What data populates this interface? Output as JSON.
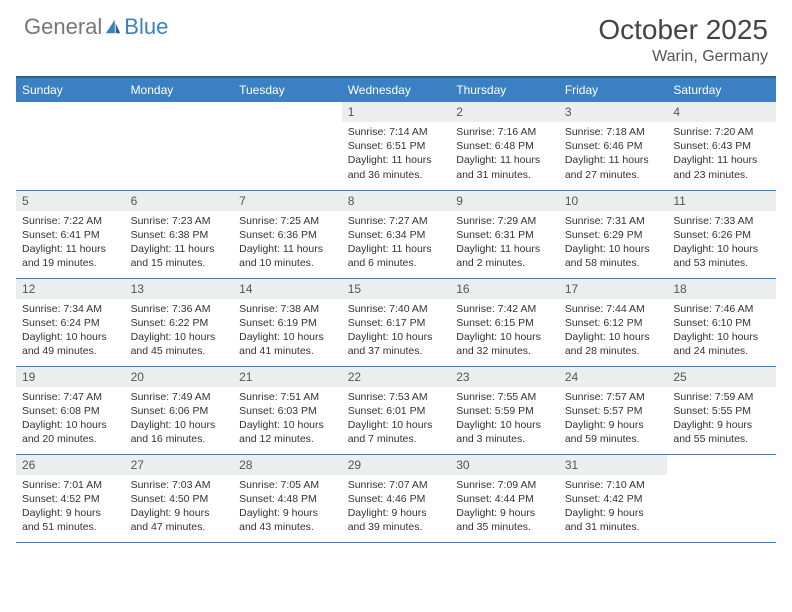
{
  "logo": {
    "part1": "General",
    "part2": "Blue"
  },
  "title": "October 2025",
  "subtitle": "Warin, Germany",
  "colors": {
    "header_bg": "#3a80c3",
    "header_border": "#2d5f8f",
    "daynum_bg": "#eceded",
    "row_border": "#3a80c3",
    "text": "#333333",
    "logo_gray": "#777777",
    "logo_blue": "#3a80c3"
  },
  "weekdays": [
    "Sunday",
    "Monday",
    "Tuesday",
    "Wednesday",
    "Thursday",
    "Friday",
    "Saturday"
  ],
  "weeks": [
    [
      {
        "n": "",
        "l": [
          "",
          "",
          "",
          ""
        ]
      },
      {
        "n": "",
        "l": [
          "",
          "",
          "",
          ""
        ]
      },
      {
        "n": "",
        "l": [
          "",
          "",
          "",
          ""
        ]
      },
      {
        "n": "1",
        "l": [
          "Sunrise: 7:14 AM",
          "Sunset: 6:51 PM",
          "Daylight: 11 hours",
          "and 36 minutes."
        ]
      },
      {
        "n": "2",
        "l": [
          "Sunrise: 7:16 AM",
          "Sunset: 6:48 PM",
          "Daylight: 11 hours",
          "and 31 minutes."
        ]
      },
      {
        "n": "3",
        "l": [
          "Sunrise: 7:18 AM",
          "Sunset: 6:46 PM",
          "Daylight: 11 hours",
          "and 27 minutes."
        ]
      },
      {
        "n": "4",
        "l": [
          "Sunrise: 7:20 AM",
          "Sunset: 6:43 PM",
          "Daylight: 11 hours",
          "and 23 minutes."
        ]
      }
    ],
    [
      {
        "n": "5",
        "l": [
          "Sunrise: 7:22 AM",
          "Sunset: 6:41 PM",
          "Daylight: 11 hours",
          "and 19 minutes."
        ]
      },
      {
        "n": "6",
        "l": [
          "Sunrise: 7:23 AM",
          "Sunset: 6:38 PM",
          "Daylight: 11 hours",
          "and 15 minutes."
        ]
      },
      {
        "n": "7",
        "l": [
          "Sunrise: 7:25 AM",
          "Sunset: 6:36 PM",
          "Daylight: 11 hours",
          "and 10 minutes."
        ]
      },
      {
        "n": "8",
        "l": [
          "Sunrise: 7:27 AM",
          "Sunset: 6:34 PM",
          "Daylight: 11 hours",
          "and 6 minutes."
        ]
      },
      {
        "n": "9",
        "l": [
          "Sunrise: 7:29 AM",
          "Sunset: 6:31 PM",
          "Daylight: 11 hours",
          "and 2 minutes."
        ]
      },
      {
        "n": "10",
        "l": [
          "Sunrise: 7:31 AM",
          "Sunset: 6:29 PM",
          "Daylight: 10 hours",
          "and 58 minutes."
        ]
      },
      {
        "n": "11",
        "l": [
          "Sunrise: 7:33 AM",
          "Sunset: 6:26 PM",
          "Daylight: 10 hours",
          "and 53 minutes."
        ]
      }
    ],
    [
      {
        "n": "12",
        "l": [
          "Sunrise: 7:34 AM",
          "Sunset: 6:24 PM",
          "Daylight: 10 hours",
          "and 49 minutes."
        ]
      },
      {
        "n": "13",
        "l": [
          "Sunrise: 7:36 AM",
          "Sunset: 6:22 PM",
          "Daylight: 10 hours",
          "and 45 minutes."
        ]
      },
      {
        "n": "14",
        "l": [
          "Sunrise: 7:38 AM",
          "Sunset: 6:19 PM",
          "Daylight: 10 hours",
          "and 41 minutes."
        ]
      },
      {
        "n": "15",
        "l": [
          "Sunrise: 7:40 AM",
          "Sunset: 6:17 PM",
          "Daylight: 10 hours",
          "and 37 minutes."
        ]
      },
      {
        "n": "16",
        "l": [
          "Sunrise: 7:42 AM",
          "Sunset: 6:15 PM",
          "Daylight: 10 hours",
          "and 32 minutes."
        ]
      },
      {
        "n": "17",
        "l": [
          "Sunrise: 7:44 AM",
          "Sunset: 6:12 PM",
          "Daylight: 10 hours",
          "and 28 minutes."
        ]
      },
      {
        "n": "18",
        "l": [
          "Sunrise: 7:46 AM",
          "Sunset: 6:10 PM",
          "Daylight: 10 hours",
          "and 24 minutes."
        ]
      }
    ],
    [
      {
        "n": "19",
        "l": [
          "Sunrise: 7:47 AM",
          "Sunset: 6:08 PM",
          "Daylight: 10 hours",
          "and 20 minutes."
        ]
      },
      {
        "n": "20",
        "l": [
          "Sunrise: 7:49 AM",
          "Sunset: 6:06 PM",
          "Daylight: 10 hours",
          "and 16 minutes."
        ]
      },
      {
        "n": "21",
        "l": [
          "Sunrise: 7:51 AM",
          "Sunset: 6:03 PM",
          "Daylight: 10 hours",
          "and 12 minutes."
        ]
      },
      {
        "n": "22",
        "l": [
          "Sunrise: 7:53 AM",
          "Sunset: 6:01 PM",
          "Daylight: 10 hours",
          "and 7 minutes."
        ]
      },
      {
        "n": "23",
        "l": [
          "Sunrise: 7:55 AM",
          "Sunset: 5:59 PM",
          "Daylight: 10 hours",
          "and 3 minutes."
        ]
      },
      {
        "n": "24",
        "l": [
          "Sunrise: 7:57 AM",
          "Sunset: 5:57 PM",
          "Daylight: 9 hours",
          "and 59 minutes."
        ]
      },
      {
        "n": "25",
        "l": [
          "Sunrise: 7:59 AM",
          "Sunset: 5:55 PM",
          "Daylight: 9 hours",
          "and 55 minutes."
        ]
      }
    ],
    [
      {
        "n": "26",
        "l": [
          "Sunrise: 7:01 AM",
          "Sunset: 4:52 PM",
          "Daylight: 9 hours",
          "and 51 minutes."
        ]
      },
      {
        "n": "27",
        "l": [
          "Sunrise: 7:03 AM",
          "Sunset: 4:50 PM",
          "Daylight: 9 hours",
          "and 47 minutes."
        ]
      },
      {
        "n": "28",
        "l": [
          "Sunrise: 7:05 AM",
          "Sunset: 4:48 PM",
          "Daylight: 9 hours",
          "and 43 minutes."
        ]
      },
      {
        "n": "29",
        "l": [
          "Sunrise: 7:07 AM",
          "Sunset: 4:46 PM",
          "Daylight: 9 hours",
          "and 39 minutes."
        ]
      },
      {
        "n": "30",
        "l": [
          "Sunrise: 7:09 AM",
          "Sunset: 4:44 PM",
          "Daylight: 9 hours",
          "and 35 minutes."
        ]
      },
      {
        "n": "31",
        "l": [
          "Sunrise: 7:10 AM",
          "Sunset: 4:42 PM",
          "Daylight: 9 hours",
          "and 31 minutes."
        ]
      },
      {
        "n": "",
        "l": [
          "",
          "",
          "",
          ""
        ]
      }
    ]
  ]
}
